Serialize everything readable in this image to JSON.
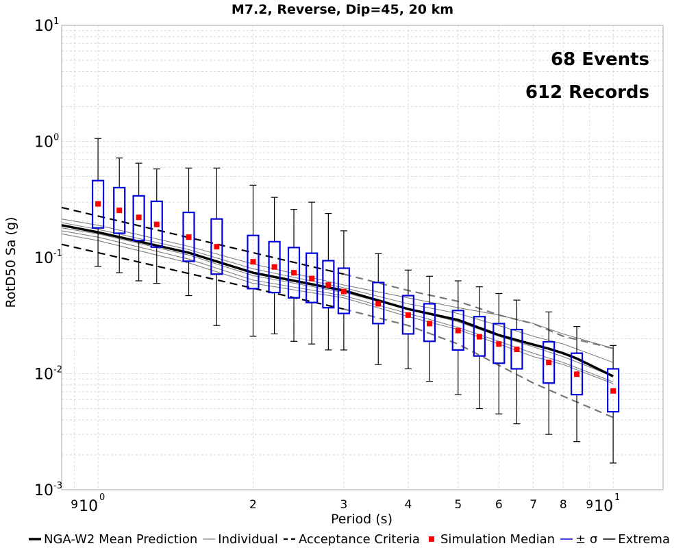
{
  "chart_data": {
    "type": "box",
    "title": "M7.2, Reverse, Dip=45, 20 km",
    "xlabel": "Period (s)",
    "ylabel": "RotD50 Sa (g)",
    "x_scale": "log",
    "y_scale": "log",
    "xlim": [
      0.85,
      12.5
    ],
    "ylim": [
      0.001,
      10
    ],
    "grid": true,
    "y_ticks": [
      {
        "value": 0.001,
        "base": "10",
        "exp": "-3"
      },
      {
        "value": 0.01,
        "base": "10",
        "exp": "-2"
      },
      {
        "value": 0.1,
        "base": "10",
        "exp": "-1"
      },
      {
        "value": 1,
        "base": "10",
        "exp": "0"
      },
      {
        "value": 10,
        "base": "10",
        "exp": "1"
      }
    ],
    "x_major_ticks": [
      {
        "value": 1,
        "base": "10",
        "exp": "0"
      },
      {
        "value": 10,
        "base": "10",
        "exp": "1"
      }
    ],
    "x_minor_ticks": [
      {
        "value": 0.9,
        "label": "9"
      },
      {
        "value": 2,
        "label": "2"
      },
      {
        "value": 3,
        "label": "3"
      },
      {
        "value": 4,
        "label": "4"
      },
      {
        "value": 5,
        "label": "5"
      },
      {
        "value": 6,
        "label": "6"
      },
      {
        "value": 7,
        "label": "7"
      },
      {
        "value": 8,
        "label": "8"
      },
      {
        "value": 9,
        "label": "9"
      }
    ],
    "annotations": [
      "68 Events",
      "612 Records"
    ],
    "nga_mean": {
      "name": "NGA-W2 Mean Prediction",
      "color": "#000000",
      "x": [
        0.85,
        1,
        1.5,
        2,
        3,
        4,
        5,
        6,
        7,
        7.5,
        8,
        8.5,
        10
      ],
      "y": [
        0.19,
        0.165,
        0.11,
        0.074,
        0.052,
        0.036,
        0.029,
        0.0215,
        0.0178,
        0.0164,
        0.015,
        0.0135,
        0.0095
      ]
    },
    "individual": {
      "name": "Individual",
      "color": "#808080",
      "series": [
        {
          "x": [
            0.85,
            1,
            1.5,
            2,
            3,
            4,
            5,
            6,
            7,
            8,
            10
          ],
          "y": [
            0.215,
            0.19,
            0.125,
            0.088,
            0.058,
            0.045,
            0.037,
            0.032,
            0.027,
            0.022,
            0.0165
          ]
        },
        {
          "x": [
            0.85,
            1,
            1.5,
            2,
            3,
            4,
            5,
            6,
            7,
            8,
            10
          ],
          "y": [
            0.2,
            0.175,
            0.117,
            0.08,
            0.055,
            0.04,
            0.033,
            0.026,
            0.021,
            0.018,
            0.0125
          ]
        },
        {
          "x": [
            0.85,
            1,
            1.5,
            2,
            3,
            4,
            5,
            6,
            7,
            8,
            10
          ],
          "y": [
            0.18,
            0.16,
            0.105,
            0.07,
            0.05,
            0.036,
            0.028,
            0.021,
            0.017,
            0.014,
            0.0095
          ]
        },
        {
          "x": [
            0.85,
            1,
            1.5,
            2,
            3,
            4,
            5,
            6,
            7,
            8,
            10
          ],
          "y": [
            0.17,
            0.15,
            0.097,
            0.064,
            0.047,
            0.033,
            0.025,
            0.019,
            0.015,
            0.0125,
            0.0085
          ]
        },
        {
          "x": [
            0.85,
            1,
            1.5,
            2,
            3,
            4,
            5,
            6,
            7,
            8,
            10
          ],
          "y": [
            0.16,
            0.14,
            0.09,
            0.06,
            0.045,
            0.031,
            0.024,
            0.018,
            0.014,
            0.012,
            0.0082
          ]
        }
      ]
    },
    "acceptance": {
      "name": "Acceptance Criteria",
      "upper_black": {
        "x": [
          0.85,
          3
        ],
        "y": [
          0.27,
          0.072
        ]
      },
      "lower_black": {
        "x": [
          0.85,
          3
        ],
        "y": [
          0.13,
          0.036
        ]
      },
      "upper_gray": {
        "x": [
          3,
          4,
          5,
          6,
          7,
          8,
          10
        ],
        "y": [
          0.072,
          0.052,
          0.042,
          0.032,
          0.027,
          0.021,
          0.0165
        ]
      },
      "lower_gray": {
        "x": [
          3,
          4,
          5,
          6,
          7,
          8,
          10
        ],
        "y": [
          0.036,
          0.026,
          0.018,
          0.0118,
          0.0083,
          0.0064,
          0.0042
        ]
      }
    },
    "boxes": [
      {
        "x": 1.0,
        "median": 0.29,
        "lo": 0.18,
        "hi": 0.46,
        "min": 0.084,
        "max": 1.06
      },
      {
        "x": 1.1,
        "median": 0.255,
        "lo": 0.162,
        "hi": 0.4,
        "min": 0.074,
        "max": 0.72
      },
      {
        "x": 1.2,
        "median": 0.222,
        "lo": 0.14,
        "hi": 0.34,
        "min": 0.063,
        "max": 0.65
      },
      {
        "x": 1.3,
        "median": 0.193,
        "lo": 0.123,
        "hi": 0.305,
        "min": 0.06,
        "max": 0.58
      },
      {
        "x": 1.5,
        "median": 0.15,
        "lo": 0.093,
        "hi": 0.245,
        "min": 0.047,
        "max": 0.59
      },
      {
        "x": 1.7,
        "median": 0.124,
        "lo": 0.072,
        "hi": 0.215,
        "min": 0.026,
        "max": 0.59
      },
      {
        "x": 2.0,
        "median": 0.092,
        "lo": 0.054,
        "hi": 0.155,
        "min": 0.021,
        "max": 0.42
      },
      {
        "x": 2.2,
        "median": 0.083,
        "lo": 0.05,
        "hi": 0.137,
        "min": 0.022,
        "max": 0.33
      },
      {
        "x": 2.4,
        "median": 0.074,
        "lo": 0.045,
        "hi": 0.122,
        "min": 0.019,
        "max": 0.26
      },
      {
        "x": 2.6,
        "median": 0.066,
        "lo": 0.041,
        "hi": 0.109,
        "min": 0.018,
        "max": 0.3
      },
      {
        "x": 2.8,
        "median": 0.058,
        "lo": 0.037,
        "hi": 0.094,
        "min": 0.016,
        "max": 0.24
      },
      {
        "x": 3.0,
        "median": 0.051,
        "lo": 0.033,
        "hi": 0.081,
        "min": 0.016,
        "max": 0.17
      },
      {
        "x": 3.5,
        "median": 0.04,
        "lo": 0.027,
        "hi": 0.061,
        "min": 0.012,
        "max": 0.108
      },
      {
        "x": 4.0,
        "median": 0.032,
        "lo": 0.022,
        "hi": 0.047,
        "min": 0.011,
        "max": 0.078
      },
      {
        "x": 4.4,
        "median": 0.027,
        "lo": 0.019,
        "hi": 0.04,
        "min": 0.0086,
        "max": 0.069
      },
      {
        "x": 5.0,
        "median": 0.0235,
        "lo": 0.016,
        "hi": 0.035,
        "min": 0.0066,
        "max": 0.063
      },
      {
        "x": 5.5,
        "median": 0.0208,
        "lo": 0.0142,
        "hi": 0.031,
        "min": 0.005,
        "max": 0.056
      },
      {
        "x": 6.0,
        "median": 0.018,
        "lo": 0.0123,
        "hi": 0.027,
        "min": 0.0045,
        "max": 0.049
      },
      {
        "x": 6.5,
        "median": 0.0162,
        "lo": 0.011,
        "hi": 0.024,
        "min": 0.0037,
        "max": 0.043
      },
      {
        "x": 7.5,
        "median": 0.0125,
        "lo": 0.0083,
        "hi": 0.0188,
        "min": 0.003,
        "max": 0.034
      },
      {
        "x": 8.5,
        "median": 0.0099,
        "lo": 0.0066,
        "hi": 0.015,
        "min": 0.0026,
        "max": 0.0255
      },
      {
        "x": 10.0,
        "median": 0.0071,
        "lo": 0.0047,
        "hi": 0.011,
        "min": 0.0017,
        "max": 0.0175
      }
    ],
    "legend": {
      "placement": "bottom",
      "entries": [
        {
          "label": "NGA-W2 Mean Prediction",
          "kind": "thick-line",
          "color": "#000000"
        },
        {
          "label": "Individual",
          "kind": "thin-line",
          "color": "#808080"
        },
        {
          "label": "Acceptance Criteria",
          "kind": "dashed-line",
          "color": "#000000"
        },
        {
          "label": "Simulation Median",
          "kind": "square",
          "color": "#ff0000"
        },
        {
          "label": "± σ",
          "kind": "line",
          "color": "#0000dd"
        },
        {
          "label": "Extrema",
          "kind": "line",
          "color": "#000000"
        }
      ]
    },
    "colors": {
      "box": "#0000dd",
      "median": "#ff0000",
      "whisker": "#000000",
      "grid": "#d8d8d8"
    }
  }
}
